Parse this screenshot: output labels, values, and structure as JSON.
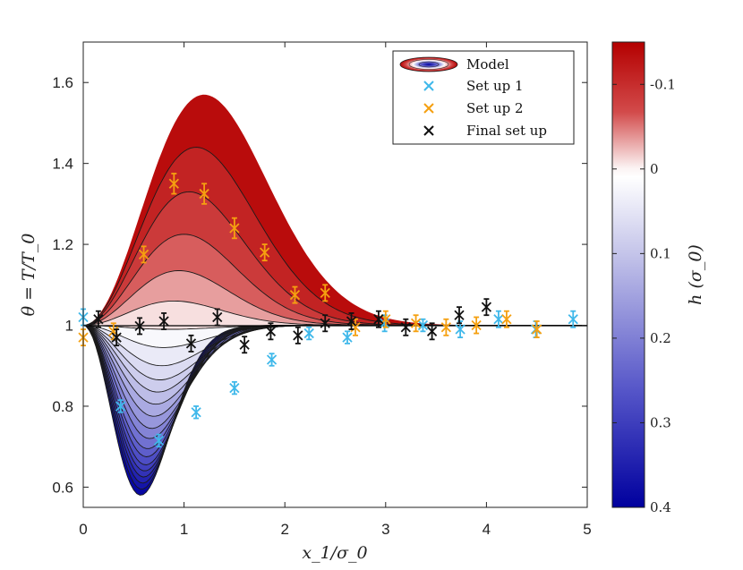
{
  "chart_data": {
    "type": "line",
    "title": "",
    "xlabel": "x_1/σ_0",
    "ylabel": "θ = T/T_0",
    "xlim": [
      0,
      5
    ],
    "ylim": [
      0.55,
      1.7
    ],
    "xticks": [
      "0",
      "1",
      "2",
      "3",
      "4",
      "5"
    ],
    "yticks": [
      "0.6",
      "0.8",
      "1",
      "1.2",
      "1.4",
      "1.6"
    ],
    "grid": false,
    "legend": {
      "placement": "top-right",
      "entries": [
        "Model",
        "Set up 1",
        "Set up 2",
        "Final set up"
      ]
    },
    "colorbar": {
      "label": "h (σ_0)",
      "range": [
        -0.15,
        0.4
      ],
      "ticks": [
        "-0.1",
        "0",
        "0.1",
        "0.2",
        "0.3",
        "0.4"
      ],
      "colors": {
        "top": "#b40000",
        "middle": "#ffffff",
        "bottom": "#0000a0"
      }
    },
    "model": {
      "family": "theta(x) = 1 + a * (x/xc)^2 * exp(1 - (x/xc)^2)",
      "curves": [
        {
          "h": -0.15,
          "peak": 0.57,
          "x_at_peak": 1.2
        },
        {
          "h": -0.125,
          "peak": 0.44,
          "x_at_peak": 1.12
        },
        {
          "h": -0.1,
          "peak": 0.33,
          "x_at_peak": 1.05
        },
        {
          "h": -0.075,
          "peak": 0.225,
          "x_at_peak": 1.0
        },
        {
          "h": -0.05,
          "peak": 0.135,
          "x_at_peak": 0.95
        },
        {
          "h": -0.025,
          "peak": 0.06,
          "x_at_peak": 0.9
        },
        {
          "h": 0.0,
          "peak": -0.01,
          "x_at_peak": 0.85
        },
        {
          "h": 0.025,
          "peak": -0.055,
          "x_at_peak": 0.8
        },
        {
          "h": 0.05,
          "peak": -0.1,
          "x_at_peak": 0.78
        },
        {
          "h": 0.075,
          "peak": -0.135,
          "x_at_peak": 0.76
        },
        {
          "h": 0.1,
          "peak": -0.165,
          "x_at_peak": 0.74
        },
        {
          "h": 0.125,
          "peak": -0.195,
          "x_at_peak": 0.72
        },
        {
          "h": 0.15,
          "peak": -0.225,
          "x_at_peak": 0.7
        },
        {
          "h": 0.175,
          "peak": -0.255,
          "x_at_peak": 0.68
        },
        {
          "h": 0.2,
          "peak": -0.28,
          "x_at_peak": 0.66
        },
        {
          "h": 0.225,
          "peak": -0.305,
          "x_at_peak": 0.64
        },
        {
          "h": 0.25,
          "peak": -0.325,
          "x_at_peak": 0.63
        },
        {
          "h": 0.275,
          "peak": -0.345,
          "x_at_peak": 0.62
        },
        {
          "h": 0.3,
          "peak": -0.36,
          "x_at_peak": 0.61
        },
        {
          "h": 0.325,
          "peak": -0.375,
          "x_at_peak": 0.6
        },
        {
          "h": 0.35,
          "peak": -0.39,
          "x_at_peak": 0.59
        },
        {
          "h": 0.375,
          "peak": -0.405,
          "x_at_peak": 0.58
        },
        {
          "h": 0.4,
          "peak": -0.42,
          "x_at_peak": 0.57
        }
      ]
    },
    "series": [
      {
        "name": "Set up 1",
        "color": "#3fb8ea",
        "points": [
          {
            "x": 0.0,
            "y": 1.02,
            "err": 0.02
          },
          {
            "x": 0.37,
            "y": 0.8,
            "err": 0.015
          },
          {
            "x": 0.75,
            "y": 0.715,
            "err": 0.015
          },
          {
            "x": 1.12,
            "y": 0.785,
            "err": 0.015
          },
          {
            "x": 1.5,
            "y": 0.845,
            "err": 0.015
          },
          {
            "x": 1.87,
            "y": 0.915,
            "err": 0.015
          },
          {
            "x": 2.24,
            "y": 0.98,
            "err": 0.015
          },
          {
            "x": 2.62,
            "y": 0.97,
            "err": 0.015
          },
          {
            "x": 2.99,
            "y": 1.005,
            "err": 0.02
          },
          {
            "x": 3.37,
            "y": 1.0,
            "err": 0.015
          },
          {
            "x": 3.74,
            "y": 0.99,
            "err": 0.02
          },
          {
            "x": 4.12,
            "y": 1.015,
            "err": 0.02
          },
          {
            "x": 4.49,
            "y": 0.99,
            "err": 0.02
          },
          {
            "x": 4.86,
            "y": 1.015,
            "err": 0.02
          }
        ]
      },
      {
        "name": "Set up 2",
        "color": "#f5a010",
        "points": [
          {
            "x": 0.0,
            "y": 0.97,
            "err": 0.02
          },
          {
            "x": 0.3,
            "y": 0.985,
            "err": 0.02
          },
          {
            "x": 0.6,
            "y": 1.175,
            "err": 0.02
          },
          {
            "x": 0.9,
            "y": 1.35,
            "err": 0.025
          },
          {
            "x": 1.2,
            "y": 1.325,
            "err": 0.025
          },
          {
            "x": 1.5,
            "y": 1.24,
            "err": 0.025
          },
          {
            "x": 1.8,
            "y": 1.18,
            "err": 0.02
          },
          {
            "x": 2.1,
            "y": 1.075,
            "err": 0.02
          },
          {
            "x": 2.4,
            "y": 1.08,
            "err": 0.02
          },
          {
            "x": 2.7,
            "y": 0.995,
            "err": 0.02
          },
          {
            "x": 3.0,
            "y": 1.015,
            "err": 0.02
          },
          {
            "x": 3.3,
            "y": 1.005,
            "err": 0.02
          },
          {
            "x": 3.6,
            "y": 0.995,
            "err": 0.02
          },
          {
            "x": 3.9,
            "y": 1.0,
            "err": 0.02
          },
          {
            "x": 4.2,
            "y": 1.015,
            "err": 0.02
          },
          {
            "x": 4.5,
            "y": 0.99,
            "err": 0.02
          }
        ]
      },
      {
        "name": "Final set up",
        "color": "#111111",
        "points": [
          {
            "x": 0.15,
            "y": 1.015,
            "err": 0.02
          },
          {
            "x": 0.33,
            "y": 0.97,
            "err": 0.02
          },
          {
            "x": 0.56,
            "y": 0.998,
            "err": 0.02
          },
          {
            "x": 0.8,
            "y": 1.01,
            "err": 0.02
          },
          {
            "x": 1.07,
            "y": 0.955,
            "err": 0.02
          },
          {
            "x": 1.33,
            "y": 1.02,
            "err": 0.02
          },
          {
            "x": 1.6,
            "y": 0.952,
            "err": 0.02
          },
          {
            "x": 1.86,
            "y": 0.985,
            "err": 0.02
          },
          {
            "x": 2.13,
            "y": 0.975,
            "err": 0.02
          },
          {
            "x": 2.4,
            "y": 1.005,
            "err": 0.02
          },
          {
            "x": 2.66,
            "y": 1.01,
            "err": 0.02
          },
          {
            "x": 2.93,
            "y": 1.015,
            "err": 0.02
          },
          {
            "x": 3.2,
            "y": 0.995,
            "err": 0.02
          },
          {
            "x": 3.46,
            "y": 0.985,
            "err": 0.02
          },
          {
            "x": 3.73,
            "y": 1.025,
            "err": 0.02
          },
          {
            "x": 4.0,
            "y": 1.045,
            "err": 0.02
          }
        ]
      }
    ]
  }
}
